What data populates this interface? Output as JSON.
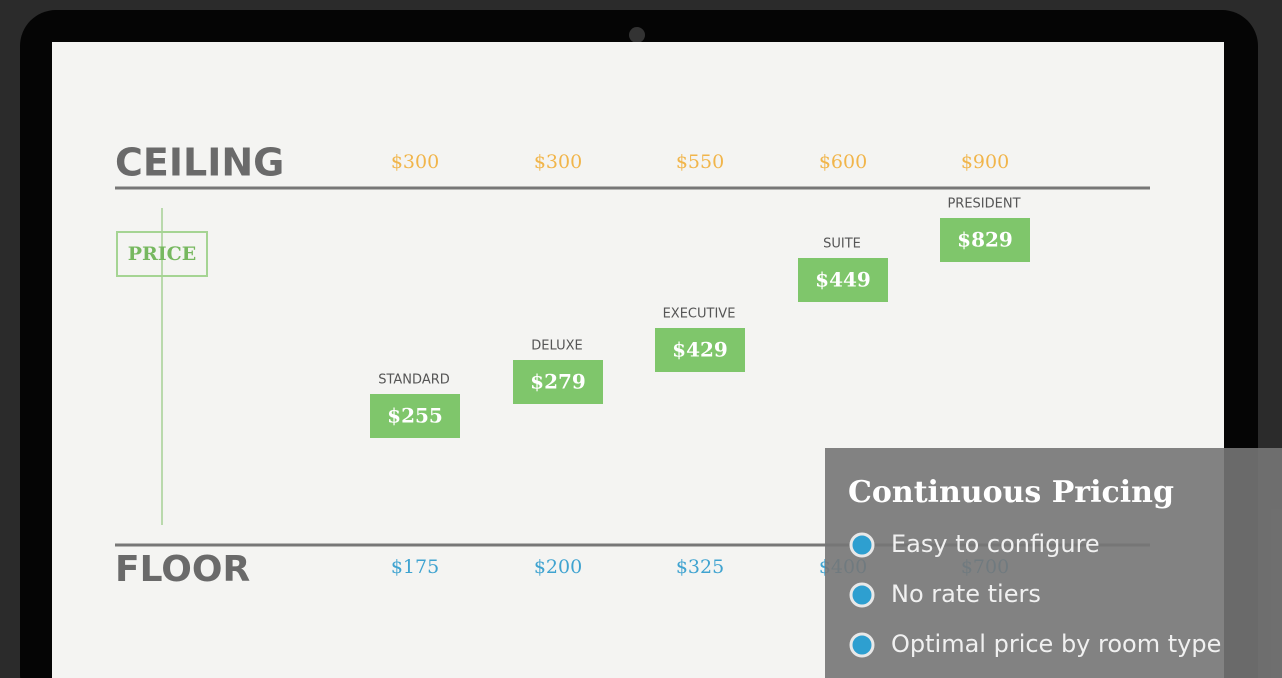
{
  "screen": {
    "ceiling": {
      "label": "CEILING",
      "prices": [
        "$300",
        "$300",
        "$550",
        "$600",
        "$900"
      ]
    },
    "price_label": "PRICE",
    "rooms": [
      {
        "name": "STANDARD",
        "price": "$255"
      },
      {
        "name": "DELUXE",
        "price": "$279"
      },
      {
        "name": "EXECUTIVE",
        "price": "$429"
      },
      {
        "name": "SUITE",
        "price": "$449"
      },
      {
        "name": "PRESIDENT",
        "price": "$829"
      }
    ],
    "floor": {
      "label": "FLOOR",
      "prices": [
        "$175",
        "$200",
        "$325",
        "$400",
        "$700"
      ]
    }
  },
  "overlay": {
    "title": "Continuous Pricing",
    "bullets": [
      "Easy to configure",
      "No rate tiers",
      "Optimal price by room type"
    ]
  }
}
